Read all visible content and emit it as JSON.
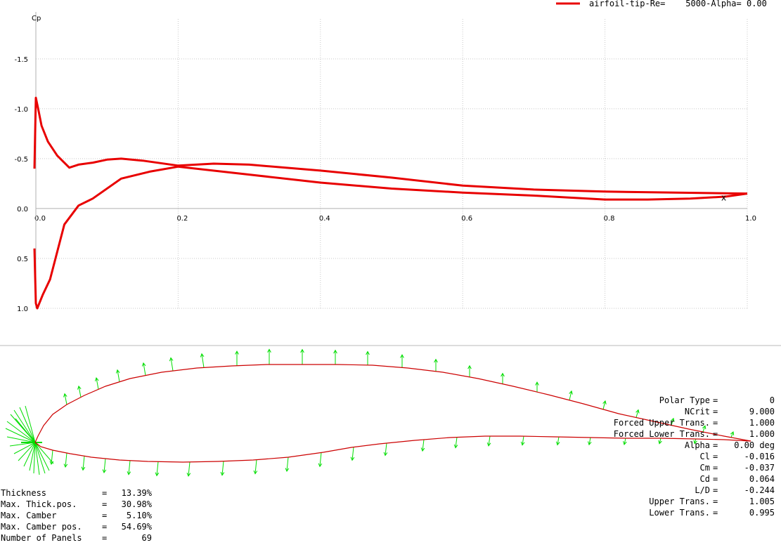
{
  "chart_data": {
    "type": "line",
    "ylabel": "Cp",
    "xlabel": "",
    "xlim": [
      0.0,
      1.0
    ],
    "ylim": [
      1.0,
      -1.9
    ],
    "y_inverted": true,
    "grid": true,
    "legend_position": "top-right",
    "x_ticks": [
      "0.0",
      "0.2",
      "0.4",
      "0.6",
      "0.8",
      "1.0"
    ],
    "y_ticks": [
      "-1.5",
      "-1.0",
      "-0.5",
      "0.0",
      "0.5",
      "1.0"
    ],
    "x_tick_values": [
      0.0,
      0.2,
      0.4,
      0.6,
      0.8,
      1.0
    ],
    "y_tick_values": [
      -1.5,
      -1.0,
      -0.5,
      0.0,
      0.5,
      1.0
    ],
    "series": [
      {
        "name": "airfoil-tip-Re=    5000-Alpha= 0.00",
        "color": "#e80000",
        "upper": {
          "x": [
            1.0,
            0.9,
            0.8,
            0.7,
            0.6,
            0.5,
            0.4,
            0.3,
            0.25,
            0.2,
            0.15,
            0.12,
            0.1,
            0.08,
            0.06,
            0.047,
            0.03,
            0.017,
            0.008,
            0.003,
            0.0,
            -0.002
          ],
          "y": [
            -0.15,
            -0.16,
            -0.17,
            -0.19,
            -0.23,
            -0.31,
            -0.38,
            -0.44,
            -0.45,
            -0.43,
            -0.48,
            -0.5,
            -0.49,
            -0.46,
            -0.44,
            -0.41,
            -0.53,
            -0.67,
            -0.83,
            -1.01,
            -1.11,
            -0.4
          ]
        },
        "lower": {
          "x": [
            -0.002,
            0.0,
            0.002,
            0.01,
            0.02,
            0.04,
            0.06,
            0.08,
            0.12,
            0.16,
            0.2,
            0.3,
            0.4,
            0.5,
            0.6,
            0.7,
            0.8,
            0.86,
            0.92,
            0.97,
            1.0
          ],
          "y": [
            0.4,
            0.95,
            1.0,
            0.86,
            0.71,
            0.16,
            -0.03,
            -0.1,
            -0.3,
            -0.37,
            -0.42,
            -0.34,
            -0.26,
            -0.2,
            -0.16,
            -0.13,
            -0.09,
            -0.09,
            -0.1,
            -0.12,
            -0.15
          ]
        }
      }
    ],
    "marker": {
      "label": "x",
      "x": 0.967,
      "y": -0.08
    }
  },
  "geometry_info": [
    {
      "label": "Thickness",
      "value": "13.39%"
    },
    {
      "label": "Max. Thick.pos.",
      "value": "30.98%"
    },
    {
      "label": "Max. Camber",
      "value": "5.10%"
    },
    {
      "label": "Max. Camber pos.",
      "value": "54.69%"
    },
    {
      "label": "Number of Panels",
      "value": "69"
    }
  ],
  "results_info": [
    {
      "label": "Polar Type",
      "value": "0"
    },
    {
      "label": "NCrit",
      "value": "9.000"
    },
    {
      "label": "Forced Upper Trans.",
      "value": "1.000"
    },
    {
      "label": "Forced Lower Trans.",
      "value": "1.000"
    },
    {
      "label": "Alpha",
      "value": "0.00 deg"
    },
    {
      "label": "Cl",
      "value": "-0.016"
    },
    {
      "label": "Cm",
      "value": "-0.037"
    },
    {
      "label": "Cd",
      "value": "0.064"
    },
    {
      "label": "L/D",
      "value": "-0.244"
    },
    {
      "label": "Upper Trans.",
      "value": "1.005"
    },
    {
      "label": "Lower Trans.",
      "value": "0.995"
    }
  ],
  "airfoil_view": {
    "contour_color": "#cc0000",
    "arrow_color": "#00dd00"
  }
}
